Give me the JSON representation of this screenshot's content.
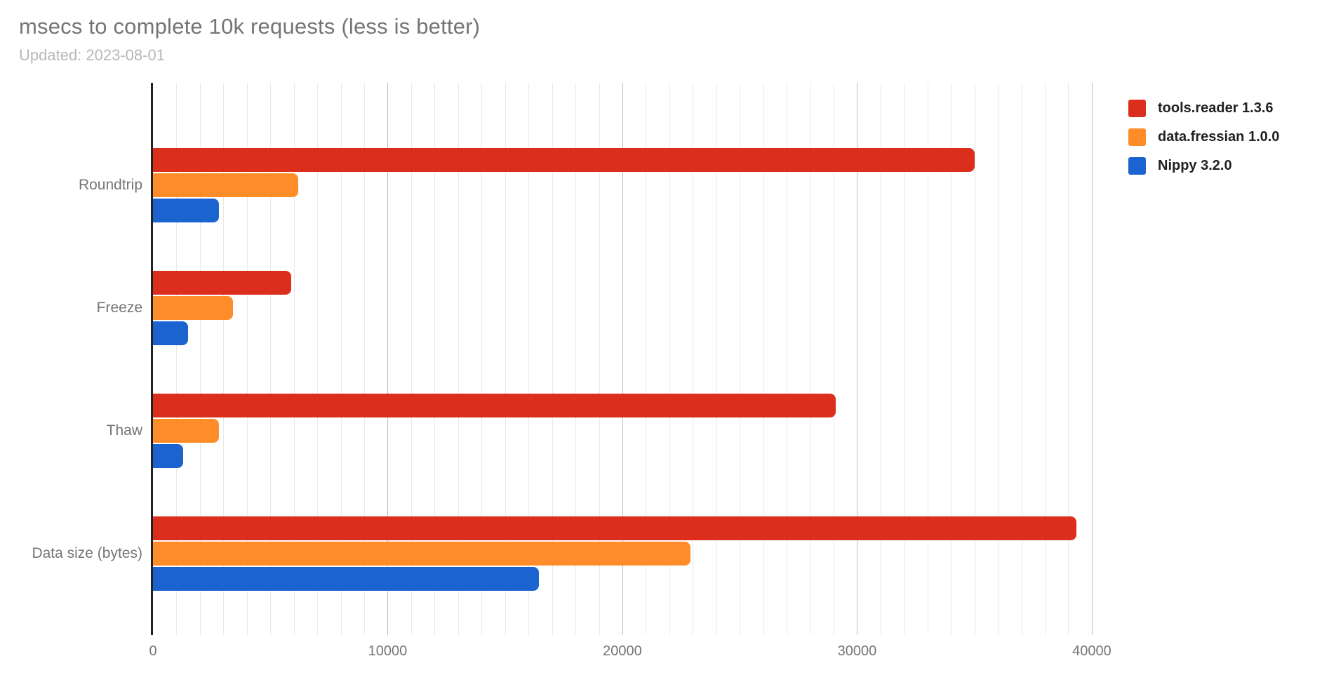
{
  "header": {
    "title": "msecs to complete 10k requests (less is better)",
    "subtitle": "Updated: 2023-08-01"
  },
  "colors": {
    "series_red": "#db2e1c",
    "series_orange": "#fd8c29",
    "series_blue": "#1b63ce",
    "title_text": "#757575",
    "subtitle_text": "#b7b7b7",
    "axis_line": "#212121",
    "minor_gridline": "#e9e9e9",
    "major_gridline": "#bdbdbd",
    "tick_text": "#757575",
    "legend_text": "#212121"
  },
  "chart_data": {
    "type": "bar",
    "orientation": "horizontal",
    "title": "msecs to complete 10k requests (less is better)",
    "subtitle": "Updated: 2023-08-01",
    "categories": [
      "Roundtrip",
      "Freeze",
      "Thaw",
      "Data size (bytes)"
    ],
    "series": [
      {
        "name": "tools.reader 1.3.6",
        "color": "#db2e1c",
        "values": [
          35000,
          5900,
          29100,
          39350
        ]
      },
      {
        "name": "data.fressian 1.0.0",
        "color": "#fd8c29",
        "values": [
          6200,
          3400,
          2800,
          22900
        ]
      },
      {
        "name": "Nippy 3.2.0",
        "color": "#1b63ce",
        "values": [
          2800,
          1500,
          1300,
          16450
        ]
      }
    ],
    "xlabel": "",
    "ylabel": "",
    "xlim": [
      0,
      40600
    ],
    "x_ticks": [
      0,
      10000,
      20000,
      30000,
      40000
    ],
    "x_tick_labels": [
      "0",
      "10000",
      "20000",
      "30000",
      "40000"
    ],
    "minor_grid_step": 1000,
    "grid": true,
    "legend_position": "top-right"
  }
}
